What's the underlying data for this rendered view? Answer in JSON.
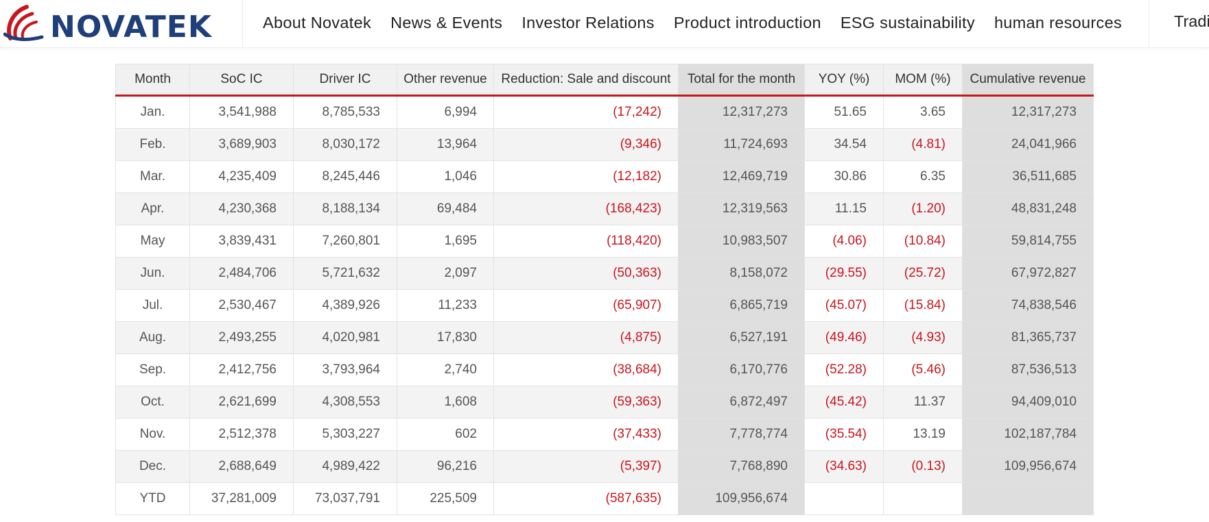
{
  "header": {
    "logo_text": "NOVATEK",
    "nav": [
      "About Novatek",
      "News & Events",
      "Investor Relations",
      "Product introduction",
      "ESG sustainability",
      "human resources"
    ],
    "language": "Traditional Chinese"
  },
  "colors": {
    "brand_blue": "#1f3f7a",
    "brand_red": "#c8161d",
    "negative": "#c8161d"
  },
  "table": {
    "headers": [
      "Month",
      "SoC IC",
      "Driver IC",
      "Other revenue",
      "Reduction: Sale and discount",
      "Total for the month",
      "YOY (%)",
      "MOM (%)",
      "Cumulative revenue"
    ],
    "rows": [
      [
        "Jan.",
        "3,541,988",
        "8,785,533",
        "6,994",
        "(17,242)",
        "12,317,273",
        "51.65",
        "3.65",
        "12,317,273"
      ],
      [
        "Feb.",
        "3,689,903",
        "8,030,172",
        "13,964",
        "(9,346)",
        "11,724,693",
        "34.54",
        "(4.81)",
        "24,041,966"
      ],
      [
        "Mar.",
        "4,235,409",
        "8,245,446",
        "1,046",
        "(12,182)",
        "12,469,719",
        "30.86",
        "6.35",
        "36,511,685"
      ],
      [
        "Apr.",
        "4,230,368",
        "8,188,134",
        "69,484",
        "(168,423)",
        "12,319,563",
        "11.15",
        "(1.20)",
        "48,831,248"
      ],
      [
        "May",
        "3,839,431",
        "7,260,801",
        "1,695",
        "(118,420)",
        "10,983,507",
        "(4.06)",
        "(10.84)",
        "59,814,755"
      ],
      [
        "Jun.",
        "2,484,706",
        "5,721,632",
        "2,097",
        "(50,363)",
        "8,158,072",
        "(29.55)",
        "(25.72)",
        "67,972,827"
      ],
      [
        "Jul.",
        "2,530,467",
        "4,389,926",
        "11,233",
        "(65,907)",
        "6,865,719",
        "(45.07)",
        "(15.84)",
        "74,838,546"
      ],
      [
        "Aug.",
        "2,493,255",
        "4,020,981",
        "17,830",
        "(4,875)",
        "6,527,191",
        "(49.46)",
        "(4.93)",
        "81,365,737"
      ],
      [
        "Sep.",
        "2,412,756",
        "3,793,964",
        "2,740",
        "(38,684)",
        "6,170,776",
        "(52.28)",
        "(5.46)",
        "87,536,513"
      ],
      [
        "Oct.",
        "2,621,699",
        "4,308,553",
        "1,608",
        "(59,363)",
        "6,872,497",
        "(45.42)",
        "11.37",
        "94,409,010"
      ],
      [
        "Nov.",
        "2,512,378",
        "5,303,227",
        "602",
        "(37,433)",
        "7,778,774",
        "(35.54)",
        "13.19",
        "102,187,784"
      ],
      [
        "Dec.",
        "2,688,649",
        "4,989,422",
        "96,216",
        "(5,397)",
        "7,768,890",
        "(34.63)",
        "(0.13)",
        "109,956,674"
      ],
      [
        "YTD",
        "37,281,009",
        "73,037,791",
        "225,509",
        "(587,635)",
        "109,956,674",
        "",
        "",
        ""
      ]
    ]
  }
}
